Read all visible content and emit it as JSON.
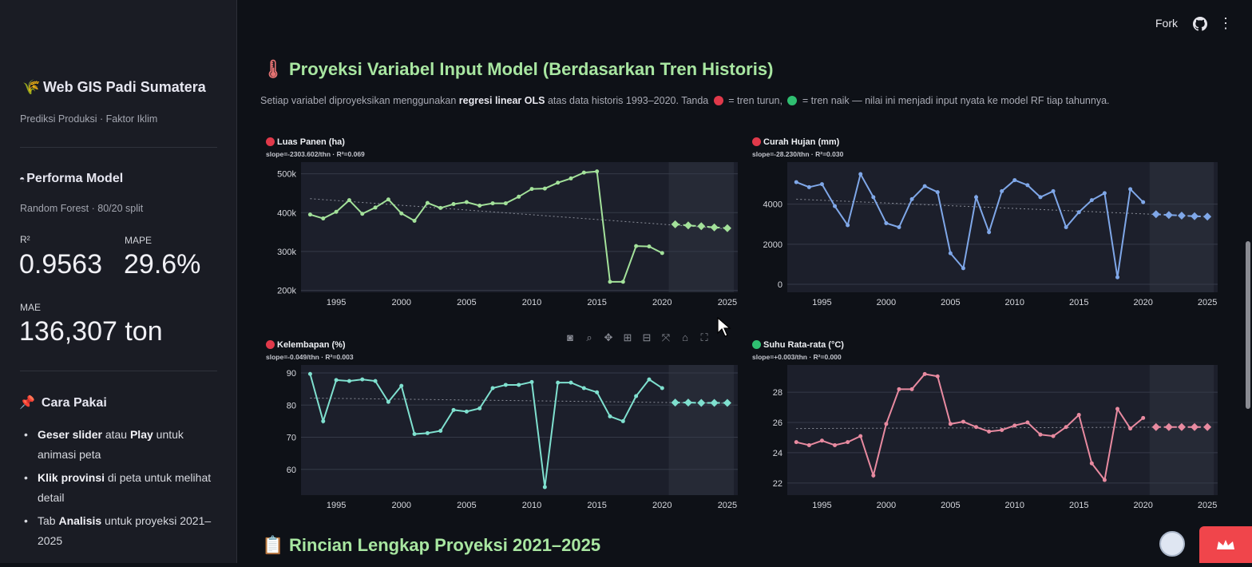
{
  "sidebar": {
    "title": "Web GIS Padi Sumatera",
    "subtitle": "Prediksi Produksi · Faktor Iklim",
    "performance_heading": "Performa Model",
    "model_info": "Random Forest · 80/20 split",
    "metrics": [
      {
        "label": "R²",
        "value": "0.9563"
      },
      {
        "label": "MAPE",
        "value": "29.6%"
      },
      {
        "label": "MAE",
        "value": "136,307 ton"
      }
    ],
    "usage_heading": "Cara Pakai",
    "usage_items": [
      {
        "bold": "Geser slider",
        "mid": " atau ",
        "bold2": "Play",
        "rest": " untuk animasi peta"
      },
      {
        "bold": "Klik provinsi",
        "mid": " di peta untuk melihat detail",
        "bold2": "",
        "rest": ""
      },
      {
        "bold": "",
        "mid": "Tab ",
        "bold2": "Analisis",
        "rest": " untuk proyeksi 2021–2025"
      }
    ]
  },
  "header": {
    "fork_label": "Fork",
    "github_icon": "github-icon",
    "menu_icon": "kebab-menu-icon"
  },
  "section1": {
    "title": "Proyeksi Variabel Input Model (Berdasarkan Tren Historis)",
    "desc_a": "Setiap variabel diproyeksikan menggunakan ",
    "desc_b": "regresi linear OLS",
    "desc_c": " atas data historis 1993–2020. Tanda ",
    "desc_d": " = tren turun, ",
    "desc_e": " = tren naik — nilai ini menjadi input nyata ke model RF tiap tahunnya."
  },
  "section2": {
    "title": "Rincian Lengkap Proyeksi 2021–2025"
  },
  "colors": {
    "down": "#e0394a",
    "up": "#2fbf71",
    "heading": "#a8e6a1"
  },
  "chart_data": [
    {
      "type": "line",
      "title": "Luas Panen (ha)",
      "subtitle": "slope=-2303.602/thn · R²=0.069",
      "trend": "down",
      "color": "#a3e19a",
      "xlim": [
        1992.3,
        2025.8
      ],
      "ylim": [
        195000,
        530000
      ],
      "yticks": [
        200000,
        300000,
        400000,
        500000
      ],
      "ytick_labels": [
        "200k",
        "300k",
        "400k",
        "500k"
      ],
      "xticks": [
        1995,
        2000,
        2005,
        2010,
        2015,
        2020,
        2025
      ],
      "x": [
        1993,
        1994,
        1995,
        1996,
        1997,
        1998,
        1999,
        2000,
        2001,
        2002,
        2003,
        2004,
        2005,
        2006,
        2007,
        2008,
        2009,
        2010,
        2011,
        2012,
        2013,
        2014,
        2015,
        2016,
        2017,
        2018,
        2019,
        2020
      ],
      "y": [
        395000,
        385000,
        402000,
        432000,
        397000,
        413000,
        434000,
        398000,
        379000,
        425000,
        412000,
        422000,
        427000,
        418000,
        424000,
        424000,
        441000,
        461000,
        462000,
        477000,
        488000,
        503000,
        506000,
        222000,
        222000,
        314000,
        313000,
        296000
      ],
      "proj_x": [
        2021,
        2022,
        2023,
        2024,
        2025
      ],
      "proj_y": [
        370000,
        367000,
        365000,
        362000,
        360000
      ],
      "trend_line": [
        [
          1993,
          436000
        ],
        [
          2025,
          358000
        ]
      ]
    },
    {
      "type": "line",
      "title": "Curah Hujan (mm)",
      "subtitle": "slope=-28.230/thn · R²=0.030",
      "trend": "down",
      "color": "#7fa7e8",
      "xlim": [
        1992.3,
        2025.8
      ],
      "ylim": [
        -400,
        6100
      ],
      "yticks": [
        0,
        2000,
        4000
      ],
      "ytick_labels": [
        "0",
        "2000",
        "4000"
      ],
      "xticks": [
        1995,
        2000,
        2005,
        2010,
        2015,
        2020,
        2025
      ],
      "x": [
        1993,
        1994,
        1995,
        1996,
        1997,
        1998,
        1999,
        2000,
        2001,
        2002,
        2003,
        2004,
        2005,
        2006,
        2007,
        2008,
        2009,
        2010,
        2011,
        2012,
        2013,
        2014,
        2015,
        2016,
        2017,
        2018,
        2019,
        2020
      ],
      "y": [
        5100,
        4850,
        5000,
        3900,
        2950,
        5500,
        4350,
        3050,
        2850,
        4250,
        4900,
        4600,
        1550,
        800,
        4350,
        2600,
        4650,
        5200,
        4950,
        4350,
        4650,
        2850,
        3600,
        4200,
        4550,
        350,
        4750,
        4100
      ],
      "proj_x": [
        2021,
        2022,
        2023,
        2024,
        2025
      ],
      "proj_y": [
        3500,
        3460,
        3430,
        3400,
        3380
      ],
      "trend_line": [
        [
          1993,
          4250
        ],
        [
          2025,
          3380
        ]
      ]
    },
    {
      "type": "line",
      "title": "Kelembapan (%)",
      "subtitle": "slope=-0.049/thn · R²=0.003",
      "trend": "down",
      "color": "#7fe0cf",
      "xlim": [
        1992.3,
        2025.8
      ],
      "ylim": [
        52,
        92.5
      ],
      "yticks": [
        60,
        70,
        80,
        90
      ],
      "ytick_labels": [
        "60",
        "70",
        "80",
        "90"
      ],
      "xticks": [
        1995,
        2000,
        2005,
        2010,
        2015,
        2020,
        2025
      ],
      "x": [
        1993,
        1994,
        1995,
        1996,
        1997,
        1998,
        1999,
        2000,
        2001,
        2002,
        2003,
        2004,
        2005,
        2006,
        2007,
        2008,
        2009,
        2010,
        2011,
        2012,
        2013,
        2014,
        2015,
        2016,
        2017,
        2018,
        2019,
        2020
      ],
      "y": [
        89.7,
        75,
        87.8,
        87.5,
        88,
        87.5,
        81,
        86,
        71,
        71.3,
        72,
        78.5,
        78,
        79,
        85.3,
        86.3,
        86.3,
        87.2,
        54.5,
        87,
        87,
        85.3,
        84,
        76.5,
        75,
        82.8,
        88,
        85.3
      ],
      "proj_x": [
        2021,
        2022,
        2023,
        2024,
        2025
      ],
      "proj_y": [
        80.8,
        80.8,
        80.7,
        80.7,
        80.7
      ],
      "trend_line": [
        [
          1993,
          82.2
        ],
        [
          2025,
          80.6
        ]
      ]
    },
    {
      "type": "line",
      "title": "Suhu Rata-rata (°C)",
      "subtitle": "slope=+0.003/thn · R²=0.000",
      "trend": "up",
      "color": "#e88aa0",
      "xlim": [
        1992.3,
        2025.8
      ],
      "ylim": [
        21.2,
        29.8
      ],
      "yticks": [
        22,
        24,
        26,
        28
      ],
      "ytick_labels": [
        "22",
        "24",
        "26",
        "28"
      ],
      "xticks": [
        1995,
        2000,
        2005,
        2010,
        2015,
        2020,
        2025
      ],
      "x": [
        1993,
        1994,
        1995,
        1996,
        1997,
        1998,
        1999,
        2000,
        2001,
        2002,
        2003,
        2004,
        2005,
        2006,
        2007,
        2008,
        2009,
        2010,
        2011,
        2012,
        2013,
        2014,
        2015,
        2016,
        2017,
        2018,
        2019,
        2020
      ],
      "y": [
        24.7,
        24.5,
        24.8,
        24.5,
        24.7,
        25.1,
        22.5,
        25.9,
        28.2,
        28.2,
        29.2,
        29.05,
        25.9,
        26.05,
        25.7,
        25.4,
        25.5,
        25.8,
        26,
        25.2,
        25.1,
        25.7,
        26.5,
        23.3,
        22.2,
        26.9,
        25.6,
        26.3
      ],
      "proj_x": [
        2021,
        2022,
        2023,
        2024,
        2025
      ],
      "proj_y": [
        25.7,
        25.7,
        25.7,
        25.7,
        25.7
      ],
      "trend_line": [
        [
          1993,
          25.6
        ],
        [
          2025,
          25.7
        ]
      ]
    }
  ]
}
